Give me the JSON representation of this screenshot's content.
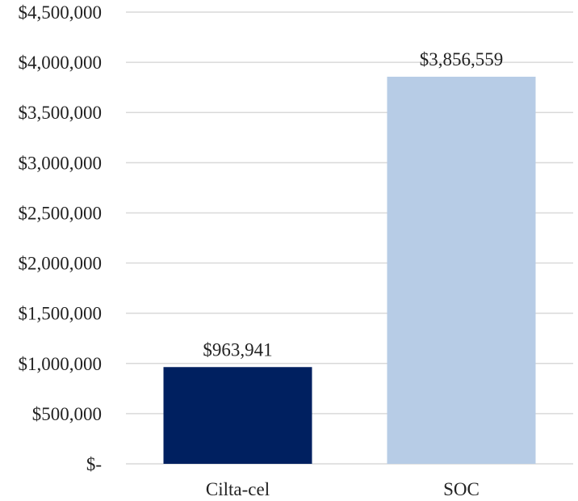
{
  "chart_data": {
    "type": "bar",
    "title": "",
    "xlabel": "",
    "ylabel": "",
    "categories": [
      "Cilta-cel",
      "SOC"
    ],
    "values": [
      963941,
      3856559
    ],
    "data_labels": [
      "$963,941",
      "$3,856,559"
    ],
    "bar_colors": [
      "#002060",
      "#b7cce6"
    ],
    "ylim": [
      0,
      4500000
    ],
    "y_ticks": [
      0,
      500000,
      1000000,
      1500000,
      2000000,
      2500000,
      3000000,
      3500000,
      4000000,
      4500000
    ],
    "y_tick_labels": [
      "$-",
      "$500,000",
      "$1,000,000",
      "$1,500,000",
      "$2,000,000",
      "$2,500,000",
      "$3,000,000",
      "$3,500,000",
      "$4,000,000",
      "$4,500,000"
    ],
    "grid": true,
    "legend": "none"
  }
}
